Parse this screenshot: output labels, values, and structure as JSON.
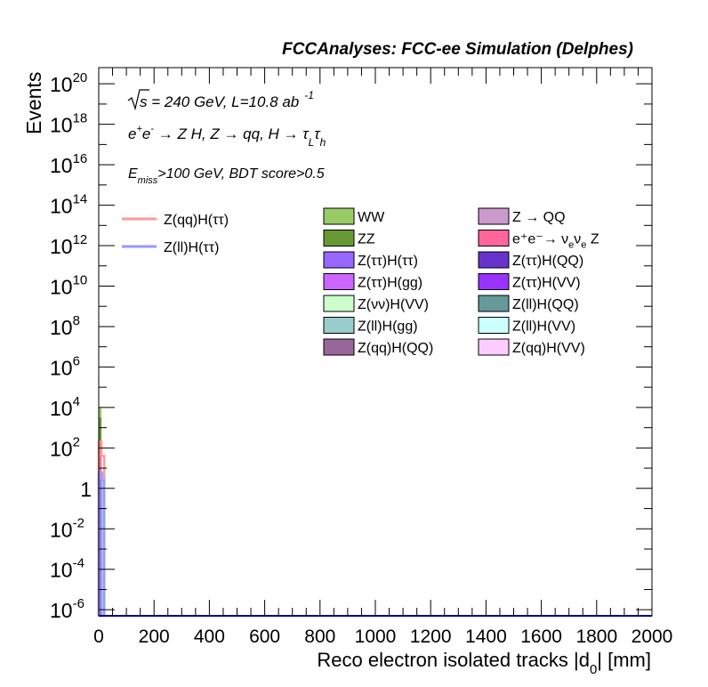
{
  "chart_data": {
    "type": "bar",
    "title": "FCCAnalyses: FCC-ee Simulation (Delphes)",
    "xlabel": "Reco electron isolated tracks |d",
    "xlabel_sub": "0",
    "xlabel_tail": "| [mm]",
    "ylabel": "Events",
    "xlim": [
      0,
      2000
    ],
    "ylim_log10": [
      -6.3,
      20.8
    ],
    "yscale": "log",
    "grid": false,
    "x_ticks": [
      "0",
      "200",
      "400",
      "600",
      "800",
      "1000",
      "1200",
      "1400",
      "1600",
      "1800",
      "2000"
    ],
    "y_ticks": [
      {
        "base": "10",
        "exp": "20",
        "log": 20
      },
      {
        "base": "10",
        "exp": "18",
        "log": 18
      },
      {
        "base": "10",
        "exp": "16",
        "log": 16
      },
      {
        "base": "10",
        "exp": "14",
        "log": 14
      },
      {
        "base": "10",
        "exp": "12",
        "log": 12
      },
      {
        "base": "10",
        "exp": "10",
        "log": 10
      },
      {
        "base": "10",
        "exp": "8",
        "log": 8
      },
      {
        "base": "10",
        "exp": "6",
        "log": 6
      },
      {
        "base": "10",
        "exp": "4",
        "log": 4
      },
      {
        "base": "10",
        "exp": "2",
        "log": 2
      },
      {
        "base": "1",
        "exp": "",
        "log": 0
      },
      {
        "base": "10",
        "exp": "-2",
        "log": -2
      },
      {
        "base": "10",
        "exp": "-4",
        "log": -4
      },
      {
        "base": "10",
        "exp": "-6",
        "log": -6
      }
    ],
    "annotations": {
      "sqrt_s": "s",
      "energy_text": " = 240 GeV, L=10.8 ab",
      "lumi_exp": "-1",
      "process": "e",
      "process_plus": "+",
      "process_e2": "e",
      "process_minus": "-",
      "process_rest1": " → Z H, Z  → qq, H  → τ",
      "process_L": "L",
      "process_tau": "τ",
      "process_h": "h",
      "cut_E": "E",
      "cut_miss": "miss",
      "cut_rest": ">100 GeV, BDT score>0.5"
    },
    "legend_lines": [
      {
        "name": "Z(qq)H(ττ)",
        "color": "#ff9999"
      },
      {
        "name": "Z(ll)H(ττ)",
        "color": "#9999ff"
      }
    ],
    "legend_boxes": [
      {
        "name": "WW",
        "color": "#99cc66"
      },
      {
        "name": "Z → QQ",
        "color": "#cc99cc"
      },
      {
        "name": "ZZ",
        "color": "#669933"
      },
      {
        "name": "e⁺e⁻→ ν",
        "name_sub1": "e",
        "name_mid": "ν",
        "name_sub2": "e",
        "name_tail": " Z",
        "color": "#ff6699"
      },
      {
        "name": "Z(ττ)H(ττ)",
        "color": "#9966ff"
      },
      {
        "name": "Z(ττ)H(QQ)",
        "color": "#6633cc"
      },
      {
        "name": "Z(ττ)H(gg)",
        "color": "#cc66ff"
      },
      {
        "name": "Z(ττ)H(VV)",
        "color": "#9933ff"
      },
      {
        "name": "Z(νν)H(VV)",
        "color": "#ccffcc"
      },
      {
        "name": "Z(ll)H(QQ)",
        "color": "#669999"
      },
      {
        "name": "Z(ll)H(gg)",
        "color": "#99cccc"
      },
      {
        "name": "Z(ll)H(VV)",
        "color": "#ccffff"
      },
      {
        "name": "Z(qq)H(QQ)",
        "color": "#996699"
      },
      {
        "name": "Z(qq)H(VV)",
        "color": "#ffccff"
      }
    ],
    "bins": [
      {
        "x_low": 0,
        "x_high": 10,
        "stack": [
          {
            "name": "Z(qq)H(QQ)",
            "log_value": -6.3,
            "color": "#996699"
          },
          {
            "name": "Z(ττ)H(ττ)",
            "log_value": 0.5,
            "color": "#9966ff"
          },
          {
            "name": "e⁺e⁻→ ννZ",
            "log_value": 1.9,
            "color": "#ff6699"
          },
          {
            "name": "ZZ",
            "log_value": 3.5,
            "color": "#669933"
          },
          {
            "name": "WW",
            "log_value": 4.0,
            "color": "#99cc66"
          }
        ]
      },
      {
        "x_low": 10,
        "x_high": 20,
        "stack": [
          {
            "name": "Z(ll)H(gg)",
            "log_value": 0.8,
            "color": "#99cccc"
          }
        ]
      }
    ],
    "signal_lines": [
      {
        "name": "Z(qq)H(ττ)",
        "color": "#ff9999",
        "log_values": [
          2.3,
          1.6
        ]
      },
      {
        "name": "Z(ll)H(ττ)",
        "color": "#9999ff",
        "log_values": [
          0.8,
          0.4
        ]
      }
    ]
  }
}
